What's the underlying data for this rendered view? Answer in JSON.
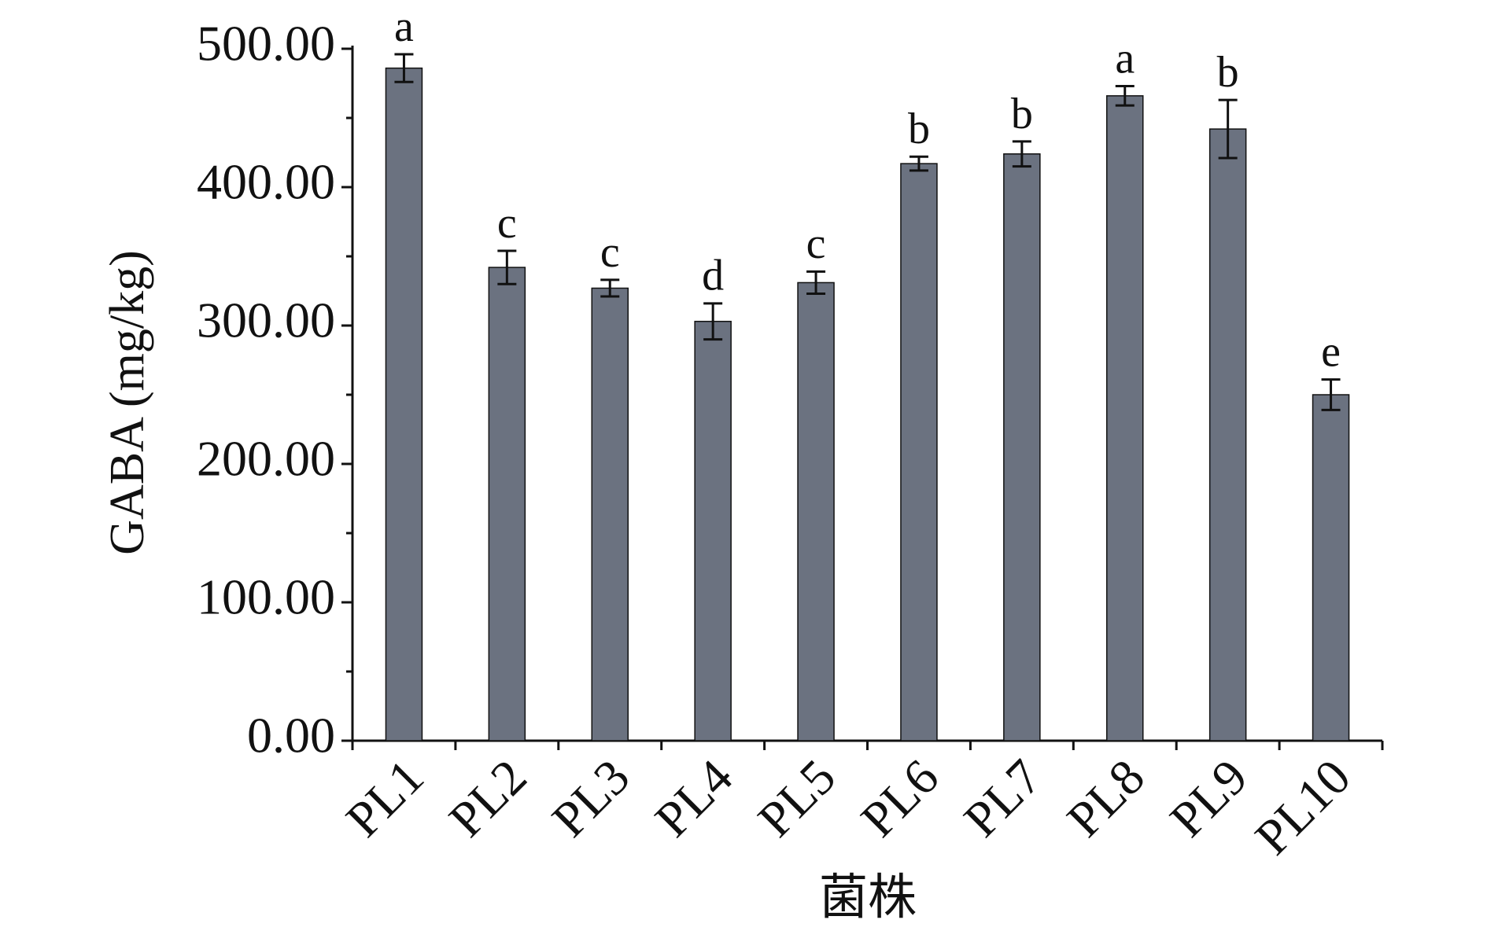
{
  "chart_data": {
    "type": "bar",
    "x_label": "菌株",
    "y_label": "GABA (mg/kg)",
    "categories": [
      "PL1",
      "PL2",
      "PL3",
      "PL4",
      "PL5",
      "PL6",
      "PL7",
      "PL8",
      "PL9",
      "PL10"
    ],
    "values": [
      486,
      342,
      327,
      303,
      331,
      417,
      424,
      466,
      442,
      250
    ],
    "errors": [
      10,
      12,
      6,
      13,
      8,
      5,
      9,
      7,
      21,
      11
    ],
    "letters": [
      "a",
      "c",
      "c",
      "d",
      "c",
      "b",
      "b",
      "a",
      "b",
      "e"
    ],
    "color": "#6b7280",
    "ylim": [
      0,
      500
    ],
    "yticks": [
      {
        "value": 0,
        "label": "0.00"
      },
      {
        "value": 100,
        "label": "100.00"
      },
      {
        "value": 200,
        "label": "200.00"
      },
      {
        "value": 300,
        "label": "300.00"
      },
      {
        "value": 400,
        "label": "400.00"
      },
      {
        "value": 500,
        "label": "500.00"
      }
    ]
  }
}
